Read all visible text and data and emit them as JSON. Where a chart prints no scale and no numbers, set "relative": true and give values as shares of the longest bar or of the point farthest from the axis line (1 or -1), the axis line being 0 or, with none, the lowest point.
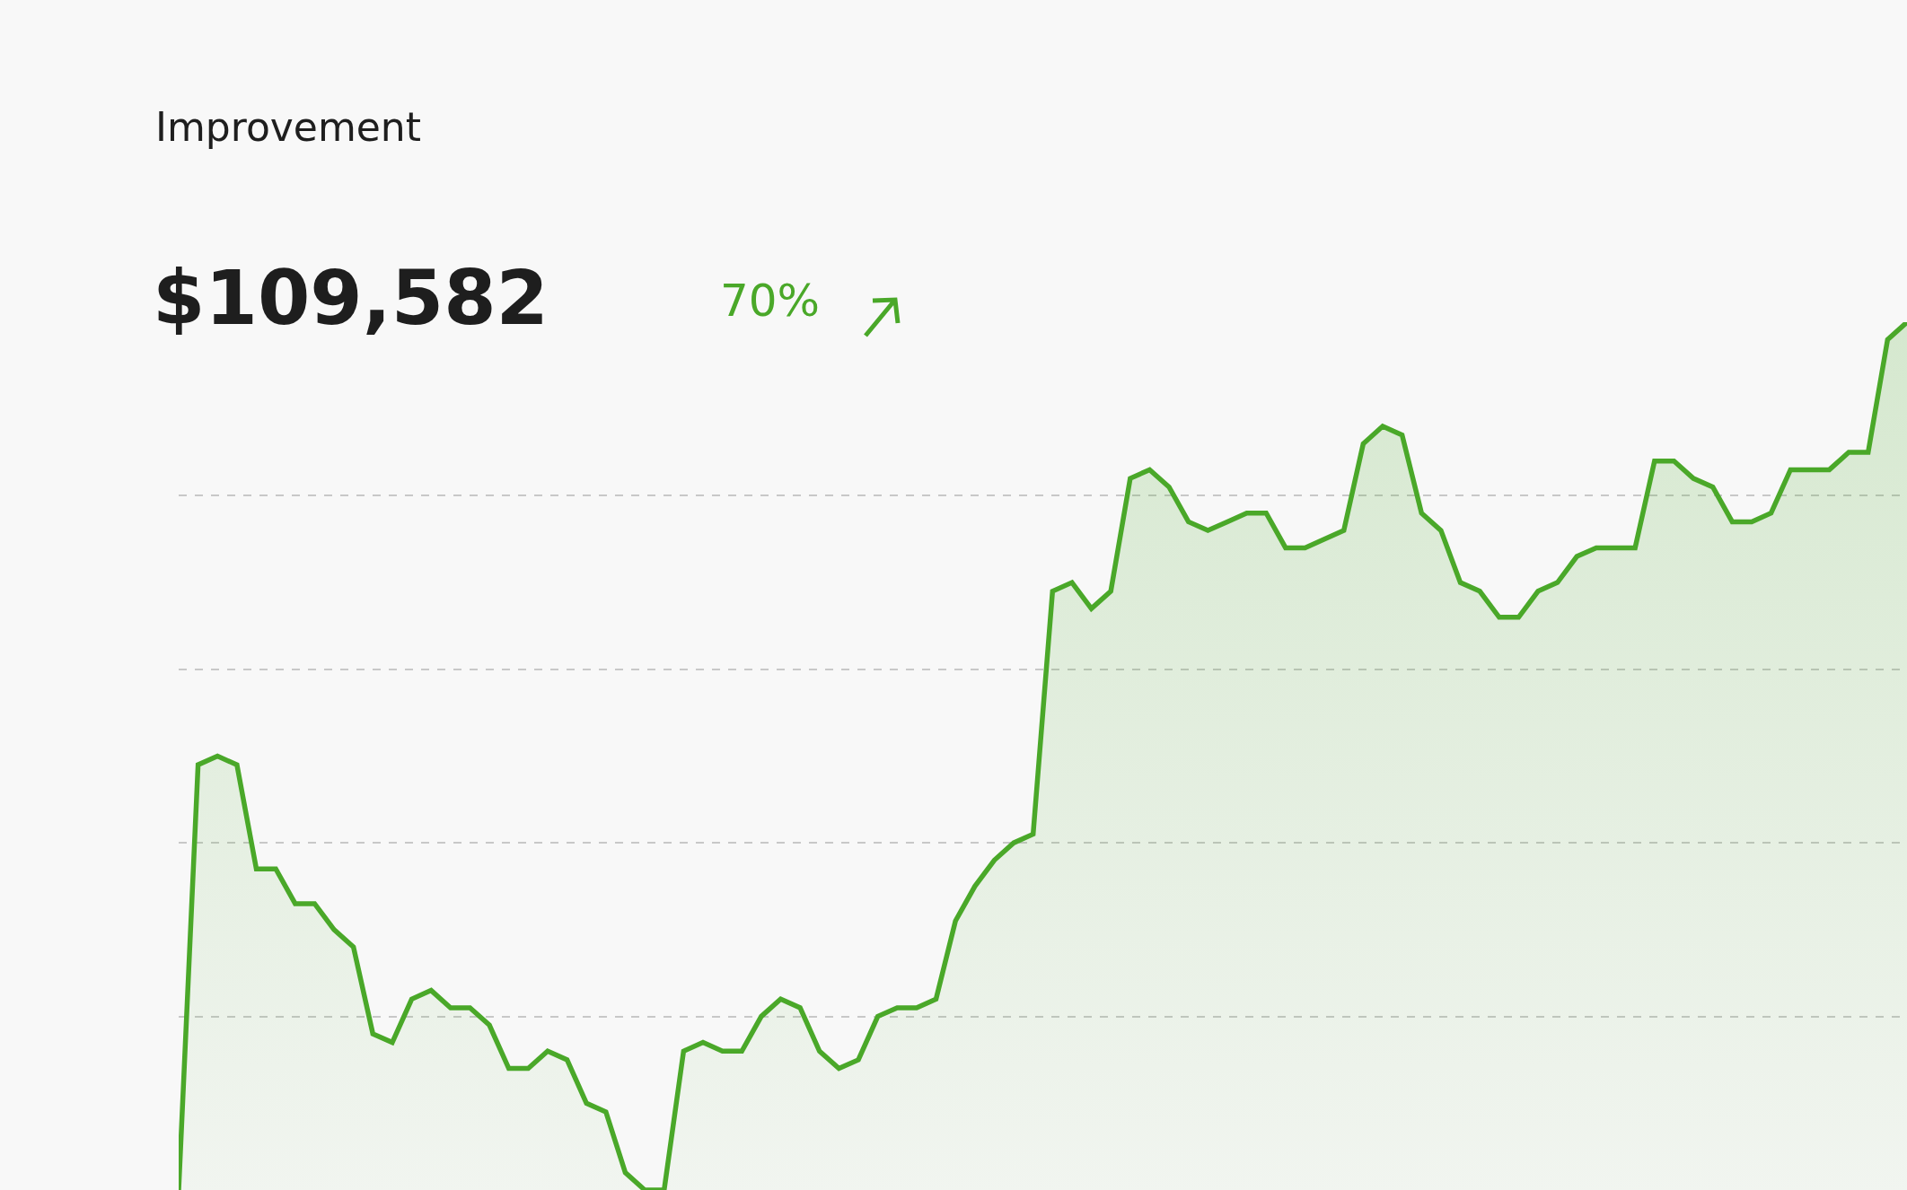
{
  "chart_data": {
    "type": "area",
    "title": "Improvement",
    "subtitle": "$109,582",
    "annotations": [
      "70%"
    ],
    "relative": true,
    "grid": "y",
    "categories": [
      null,
      null,
      null,
      null,
      null,
      null,
      null,
      null,
      null,
      null,
      null,
      null,
      null,
      null,
      null,
      null,
      null,
      null,
      null,
      null,
      null,
      null,
      null,
      null,
      null,
      null,
      null,
      null,
      null,
      null,
      null,
      null,
      null,
      null,
      null,
      null,
      null,
      null,
      null,
      null,
      null,
      null,
      null,
      null,
      null,
      null,
      null,
      null,
      null,
      null,
      null,
      null,
      null,
      null,
      null,
      null,
      null,
      null,
      null,
      null,
      null,
      null,
      null,
      null,
      null,
      null,
      null,
      null,
      null,
      null,
      null,
      null,
      null,
      null,
      null,
      null,
      null,
      null,
      null,
      null,
      null,
      null,
      null,
      null,
      null,
      null,
      null,
      null,
      null,
      null
    ],
    "series": [
      {
        "color": "#4aa829",
        "values": [
          0,
          0.49,
          0.5,
          0.49,
          0.37,
          0.37,
          0.33,
          0.33,
          0.3,
          0.28,
          0.18,
          0.17,
          0.22,
          0.23,
          0.21,
          0.21,
          0.19,
          0.14,
          0.14,
          0.16,
          0.15,
          0.1,
          0.09,
          0.02,
          0,
          0,
          0.16,
          0.17,
          0.16,
          0.16,
          0.2,
          0.22,
          0.21,
          0.16,
          0.14,
          0.15,
          0.2,
          0.21,
          0.21,
          0.22,
          0.31,
          0.35,
          0.38,
          0.4,
          0.41,
          0.69,
          0.7,
          0.67,
          0.69,
          0.82,
          0.83,
          0.81,
          0.77,
          0.76,
          0.77,
          0.78,
          0.78,
          0.74,
          0.74,
          0.75,
          0.76,
          0.86,
          0.88,
          0.87,
          0.78,
          0.76,
          0.7,
          0.69,
          0.66,
          0.66,
          0.69,
          0.7,
          0.73,
          0.74,
          0.74,
          0.74,
          0.84,
          0.84,
          0.82,
          0.81,
          0.77,
          0.77,
          0.78,
          0.83,
          0.83,
          0.83,
          0.85,
          0.85,
          0.98,
          1
        ]
      }
    ]
  }
}
